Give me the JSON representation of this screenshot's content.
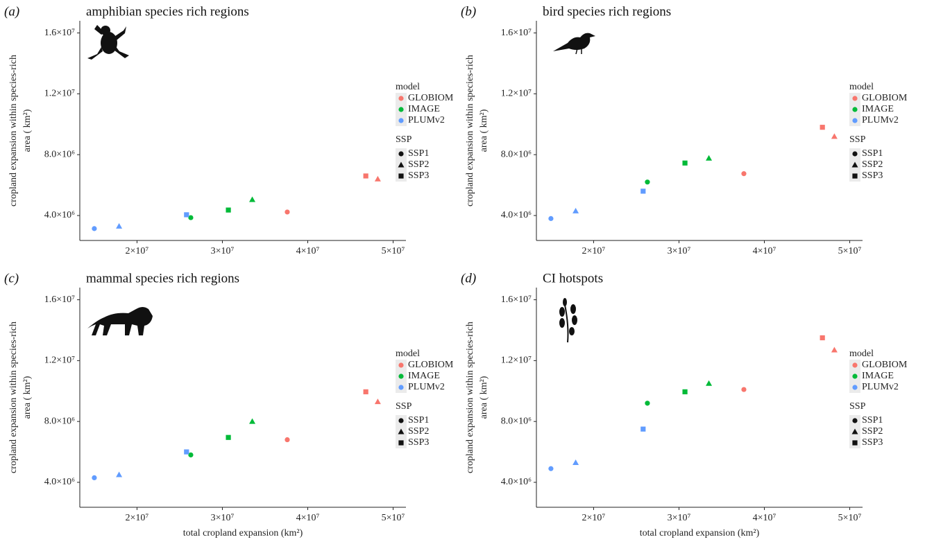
{
  "chart_data": [
    {
      "type": "scatter",
      "panel": "(a)",
      "title": "amphibian species rich regions",
      "ylabel": [
        "cropland expansion within species-rich",
        "area ( km²)"
      ],
      "xlim": [
        13300000,
        51500000
      ],
      "xticks": [
        {
          "value": 20000000,
          "label": "2×10⁷"
        },
        {
          "value": 30000000,
          "label": "3×10⁷"
        },
        {
          "value": 40000000,
          "label": "4×10⁷"
        },
        {
          "value": 50000000,
          "label": "5×10⁷"
        }
      ],
      "ylim": [
        2360000,
        16800000
      ],
      "yticks": [
        {
          "value": 4000000,
          "label": "4.0×10⁶"
        },
        {
          "value": 8000000,
          "label": "8.0×10⁶"
        },
        {
          "value": 12000000,
          "label": "1.2×10⁷"
        },
        {
          "value": 16000000,
          "label": "1.6×10⁷"
        }
      ],
      "legend_title": "model",
      "shape_legend_title": "SSP",
      "shape_names": [
        "SSP1",
        "SSP2",
        "SSP3"
      ],
      "shapes": [
        "circle",
        "triangle",
        "square"
      ],
      "series": [
        {
          "name": "GLOBIOM",
          "color": "#f8766d",
          "x": [
            37600000,
            48200000,
            46800000
          ],
          "values": [
            4230000,
            6400000,
            6600000
          ]
        },
        {
          "name": "IMAGE",
          "color": "#00ba38",
          "x": [
            26300000,
            33500000,
            30700000
          ],
          "values": [
            3860000,
            5050000,
            4360000
          ]
        },
        {
          "name": "PLUMv2",
          "color": "#619cff",
          "x": [
            15000000,
            17900000,
            25800000
          ],
          "values": [
            3140000,
            3300000,
            4050000
          ]
        }
      ]
    },
    {
      "type": "scatter",
      "panel": "(b)",
      "title": "bird species rich regions",
      "ylabel": [
        "cropland expansion within species-rich",
        "area ( km²)"
      ],
      "xlim": [
        13300000,
        51500000
      ],
      "xticks": [
        {
          "value": 20000000,
          "label": "2×10⁷"
        },
        {
          "value": 30000000,
          "label": "3×10⁷"
        },
        {
          "value": 40000000,
          "label": "4×10⁷"
        },
        {
          "value": 50000000,
          "label": "5×10⁷"
        }
      ],
      "ylim": [
        2360000,
        16800000
      ],
      "yticks": [
        {
          "value": 4000000,
          "label": "4.0×10⁶"
        },
        {
          "value": 8000000,
          "label": "8.0×10⁶"
        },
        {
          "value": 12000000,
          "label": "1.2×10⁷"
        },
        {
          "value": 16000000,
          "label": "1.6×10⁷"
        }
      ],
      "legend_title": "model",
      "shape_legend_title": "SSP",
      "shape_names": [
        "SSP1",
        "SSP2",
        "SSP3"
      ],
      "shapes": [
        "circle",
        "triangle",
        "square"
      ],
      "series": [
        {
          "name": "GLOBIOM",
          "color": "#f8766d",
          "x": [
            37600000,
            48200000,
            46800000
          ],
          "values": [
            6750000,
            9200000,
            9800000
          ]
        },
        {
          "name": "IMAGE",
          "color": "#00ba38",
          "x": [
            26300000,
            33500000,
            30700000
          ],
          "values": [
            6200000,
            7770000,
            7450000
          ]
        },
        {
          "name": "PLUMv2",
          "color": "#619cff",
          "x": [
            15000000,
            17900000,
            25800000
          ],
          "values": [
            3800000,
            4300000,
            5600000
          ]
        }
      ]
    },
    {
      "type": "scatter",
      "panel": "(c)",
      "title": "mammal species rich regions",
      "ylabel": [
        "cropland expansion within species-rich",
        "area ( km²)"
      ],
      "xlabel": "total cropland expansion (km²)",
      "xlim": [
        13300000,
        51500000
      ],
      "xticks": [
        {
          "value": 20000000,
          "label": "2×10⁷"
        },
        {
          "value": 30000000,
          "label": "3×10⁷"
        },
        {
          "value": 40000000,
          "label": "4×10⁷"
        },
        {
          "value": 50000000,
          "label": "5×10⁷"
        }
      ],
      "ylim": [
        2360000,
        16800000
      ],
      "yticks": [
        {
          "value": 4000000,
          "label": "4.0×10⁶"
        },
        {
          "value": 8000000,
          "label": "8.0×10⁶"
        },
        {
          "value": 12000000,
          "label": "1.2×10⁷"
        },
        {
          "value": 16000000,
          "label": "1.6×10⁷"
        }
      ],
      "legend_title": "model",
      "shape_legend_title": "SSP",
      "shape_names": [
        "SSP1",
        "SSP2",
        "SSP3"
      ],
      "shapes": [
        "circle",
        "triangle",
        "square"
      ],
      "series": [
        {
          "name": "GLOBIOM",
          "color": "#f8766d",
          "x": [
            37600000,
            48200000,
            46800000
          ],
          "values": [
            6800000,
            9300000,
            9950000
          ]
        },
        {
          "name": "IMAGE",
          "color": "#00ba38",
          "x": [
            26300000,
            33500000,
            30700000
          ],
          "values": [
            5800000,
            8000000,
            6950000
          ]
        },
        {
          "name": "PLUMv2",
          "color": "#619cff",
          "x": [
            15000000,
            17900000,
            25800000
          ],
          "values": [
            4300000,
            4500000,
            6000000
          ]
        }
      ]
    },
    {
      "type": "scatter",
      "panel": "(d)",
      "title": "CI hotspots",
      "ylabel": [
        "cropland expansion within species-rich",
        "area ( km²)"
      ],
      "xlabel": "total cropland expansion (km²)",
      "xlim": [
        13300000,
        51500000
      ],
      "xticks": [
        {
          "value": 20000000,
          "label": "2×10⁷"
        },
        {
          "value": 30000000,
          "label": "3×10⁷"
        },
        {
          "value": 40000000,
          "label": "4×10⁷"
        },
        {
          "value": 50000000,
          "label": "5×10⁷"
        }
      ],
      "ylim": [
        2360000,
        16800000
      ],
      "yticks": [
        {
          "value": 4000000,
          "label": "4.0×10⁶"
        },
        {
          "value": 8000000,
          "label": "8.0×10⁶"
        },
        {
          "value": 12000000,
          "label": "1.2×10⁷"
        },
        {
          "value": 16000000,
          "label": "1.6×10⁷"
        }
      ],
      "legend_title": "model",
      "shape_legend_title": "SSP",
      "shape_names": [
        "SSP1",
        "SSP2",
        "SSP3"
      ],
      "shapes": [
        "circle",
        "triangle",
        "square"
      ],
      "series": [
        {
          "name": "GLOBIOM",
          "color": "#f8766d",
          "x": [
            37600000,
            48200000,
            46800000
          ],
          "values": [
            10100000,
            12700000,
            13500000
          ]
        },
        {
          "name": "IMAGE",
          "color": "#00ba38",
          "x": [
            26300000,
            33500000,
            30700000
          ],
          "values": [
            9200000,
            10500000,
            9950000
          ]
        },
        {
          "name": "PLUMv2",
          "color": "#619cff",
          "x": [
            15000000,
            17900000,
            25800000
          ],
          "values": [
            4900000,
            5300000,
            7500000
          ]
        }
      ]
    }
  ]
}
